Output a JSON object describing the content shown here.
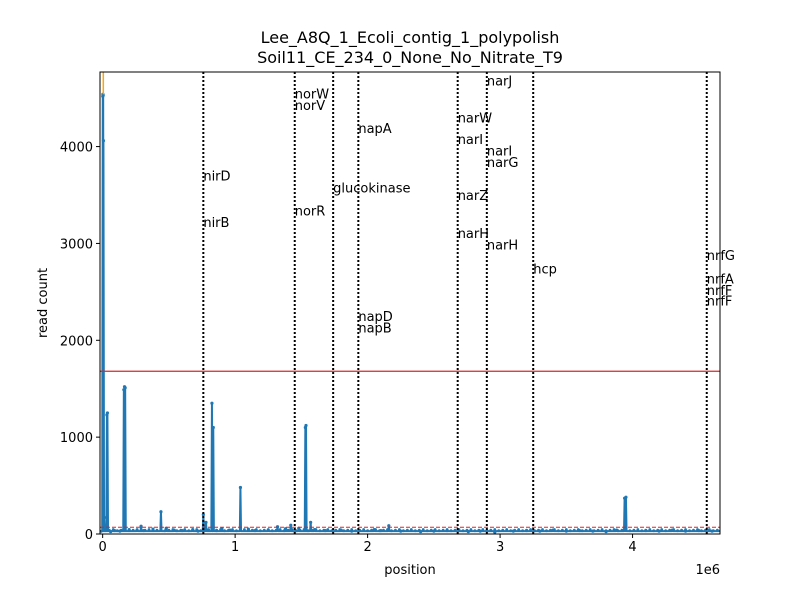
{
  "chart_data": {
    "type": "line",
    "title": "Lee_A8Q_1_Ecoli_contig_1_polypolish",
    "subtitle": "Soil11_CE_234_0_None_No_Nitrate_T9",
    "xlabel": "position",
    "ylabel": "read count",
    "x_offset_label": "1e6",
    "xlim": [
      -20000,
      4660000
    ],
    "ylim": [
      0,
      4770
    ],
    "x_ticks": [
      0,
      1000000,
      2000000,
      3000000,
      4000000
    ],
    "x_tick_labels": [
      "0",
      "1",
      "2",
      "3",
      "4"
    ],
    "y_ticks": [
      0,
      1000,
      2000,
      3000,
      4000
    ],
    "y_tick_labels": [
      "0",
      "1000",
      "2000",
      "3000",
      "4000"
    ],
    "grid": false,
    "colors": {
      "coverage": "#1f77b4",
      "threshold": "#d62728",
      "baseline": "#d62728",
      "marker": "#ffa500",
      "gene_line": "#000000"
    },
    "threshold_line": 1680,
    "baseline_line": 70,
    "coverage_series": {
      "name": "",
      "baseline_value": 30,
      "noise_points": [
        [
          60000,
          25
        ],
        [
          90000,
          35
        ],
        [
          130000,
          30
        ],
        [
          200000,
          45
        ],
        [
          260000,
          40
        ],
        [
          290000,
          80
        ],
        [
          310000,
          35
        ],
        [
          380000,
          50
        ],
        [
          480000,
          60
        ],
        [
          540000,
          40
        ],
        [
          600000,
          35
        ],
        [
          680000,
          45
        ],
        [
          720000,
          30
        ],
        [
          860000,
          35
        ],
        [
          900000,
          55
        ],
        [
          960000,
          40
        ],
        [
          1100000,
          50
        ],
        [
          1150000,
          35
        ],
        [
          1250000,
          40
        ],
        [
          1320000,
          75
        ],
        [
          1380000,
          55
        ],
        [
          1420000,
          90
        ],
        [
          1480000,
          60
        ],
        [
          1600000,
          45
        ],
        [
          1680000,
          35
        ],
        [
          1800000,
          40
        ],
        [
          1880000,
          30
        ],
        [
          2050000,
          45
        ],
        [
          2100000,
          35
        ],
        [
          2160000,
          85
        ],
        [
          2250000,
          30
        ],
        [
          2400000,
          25
        ],
        [
          2500000,
          30
        ],
        [
          2600000,
          35
        ],
        [
          2760000,
          25
        ],
        [
          2850000,
          30
        ],
        [
          2960000,
          20
        ],
        [
          3100000,
          30
        ],
        [
          3200000,
          35
        ],
        [
          3300000,
          30
        ],
        [
          3400000,
          40
        ],
        [
          3500000,
          30
        ],
        [
          3600000,
          35
        ],
        [
          3700000,
          30
        ],
        [
          3800000,
          25
        ],
        [
          3880000,
          40
        ],
        [
          4100000,
          35
        ],
        [
          4200000,
          30
        ],
        [
          4300000,
          40
        ],
        [
          4400000,
          30
        ],
        [
          4500000,
          35
        ],
        [
          4600000,
          30
        ]
      ],
      "peaks": [
        [
          1000,
          4520
        ],
        [
          2000,
          4540
        ],
        [
          4000,
          4530
        ],
        [
          6000,
          4060
        ],
        [
          20000,
          60
        ],
        [
          28000,
          170
        ],
        [
          32000,
          1230
        ],
        [
          36000,
          1250
        ],
        [
          160000,
          1490
        ],
        [
          165000,
          1520
        ],
        [
          170000,
          1510
        ],
        [
          440000,
          230
        ],
        [
          760000,
          200
        ],
        [
          780000,
          120
        ],
        [
          825000,
          1350
        ],
        [
          835000,
          1100
        ],
        [
          1040000,
          480
        ],
        [
          1530000,
          1100
        ],
        [
          1535000,
          1120
        ],
        [
          1570000,
          120
        ],
        [
          3940000,
          370
        ],
        [
          3950000,
          380
        ]
      ]
    },
    "marker_line": {
      "x": 5000,
      "y_top": 4770
    },
    "gene_markers": [
      {
        "x": 760000,
        "labels": [
          {
            "text": "nirD",
            "y": 3700
          },
          {
            "text": "nirB",
            "y": 3220
          }
        ]
      },
      {
        "x": 1450000,
        "labels": [
          {
            "text": "norW",
            "y": 4550
          },
          {
            "text": "norV",
            "y": 4430
          },
          {
            "text": "norR",
            "y": 3340
          }
        ]
      },
      {
        "x": 1740000,
        "labels": [
          {
            "text": "glucokinase",
            "y": 3580
          }
        ]
      },
      {
        "x": 1930000,
        "labels": [
          {
            "text": "napA",
            "y": 4190
          },
          {
            "text": "napD",
            "y": 2250
          },
          {
            "text": "napB",
            "y": 2130
          }
        ]
      },
      {
        "x": 2680000,
        "labels": [
          {
            "text": "narW",
            "y": 4300
          },
          {
            "text": "narI",
            "y": 4080
          },
          {
            "text": "narZ",
            "y": 3500
          },
          {
            "text": "narH",
            "y": 3110
          }
        ]
      },
      {
        "x": 2900000,
        "labels": [
          {
            "text": "narJ",
            "y": 4680
          },
          {
            "text": "narI",
            "y": 3960
          },
          {
            "text": "narG",
            "y": 3840
          },
          {
            "text": "narH",
            "y": 2990
          }
        ]
      },
      {
        "x": 3250000,
        "labels": [
          {
            "text": "hcp",
            "y": 2740
          }
        ]
      },
      {
        "x": 4560000,
        "labels": [
          {
            "text": "nrfG",
            "y": 2880
          },
          {
            "text": "nrfA",
            "y": 2640
          },
          {
            "text": "nrfF",
            "y": 2520
          },
          {
            "text": "nrfF",
            "y": 2410
          }
        ]
      }
    ]
  }
}
